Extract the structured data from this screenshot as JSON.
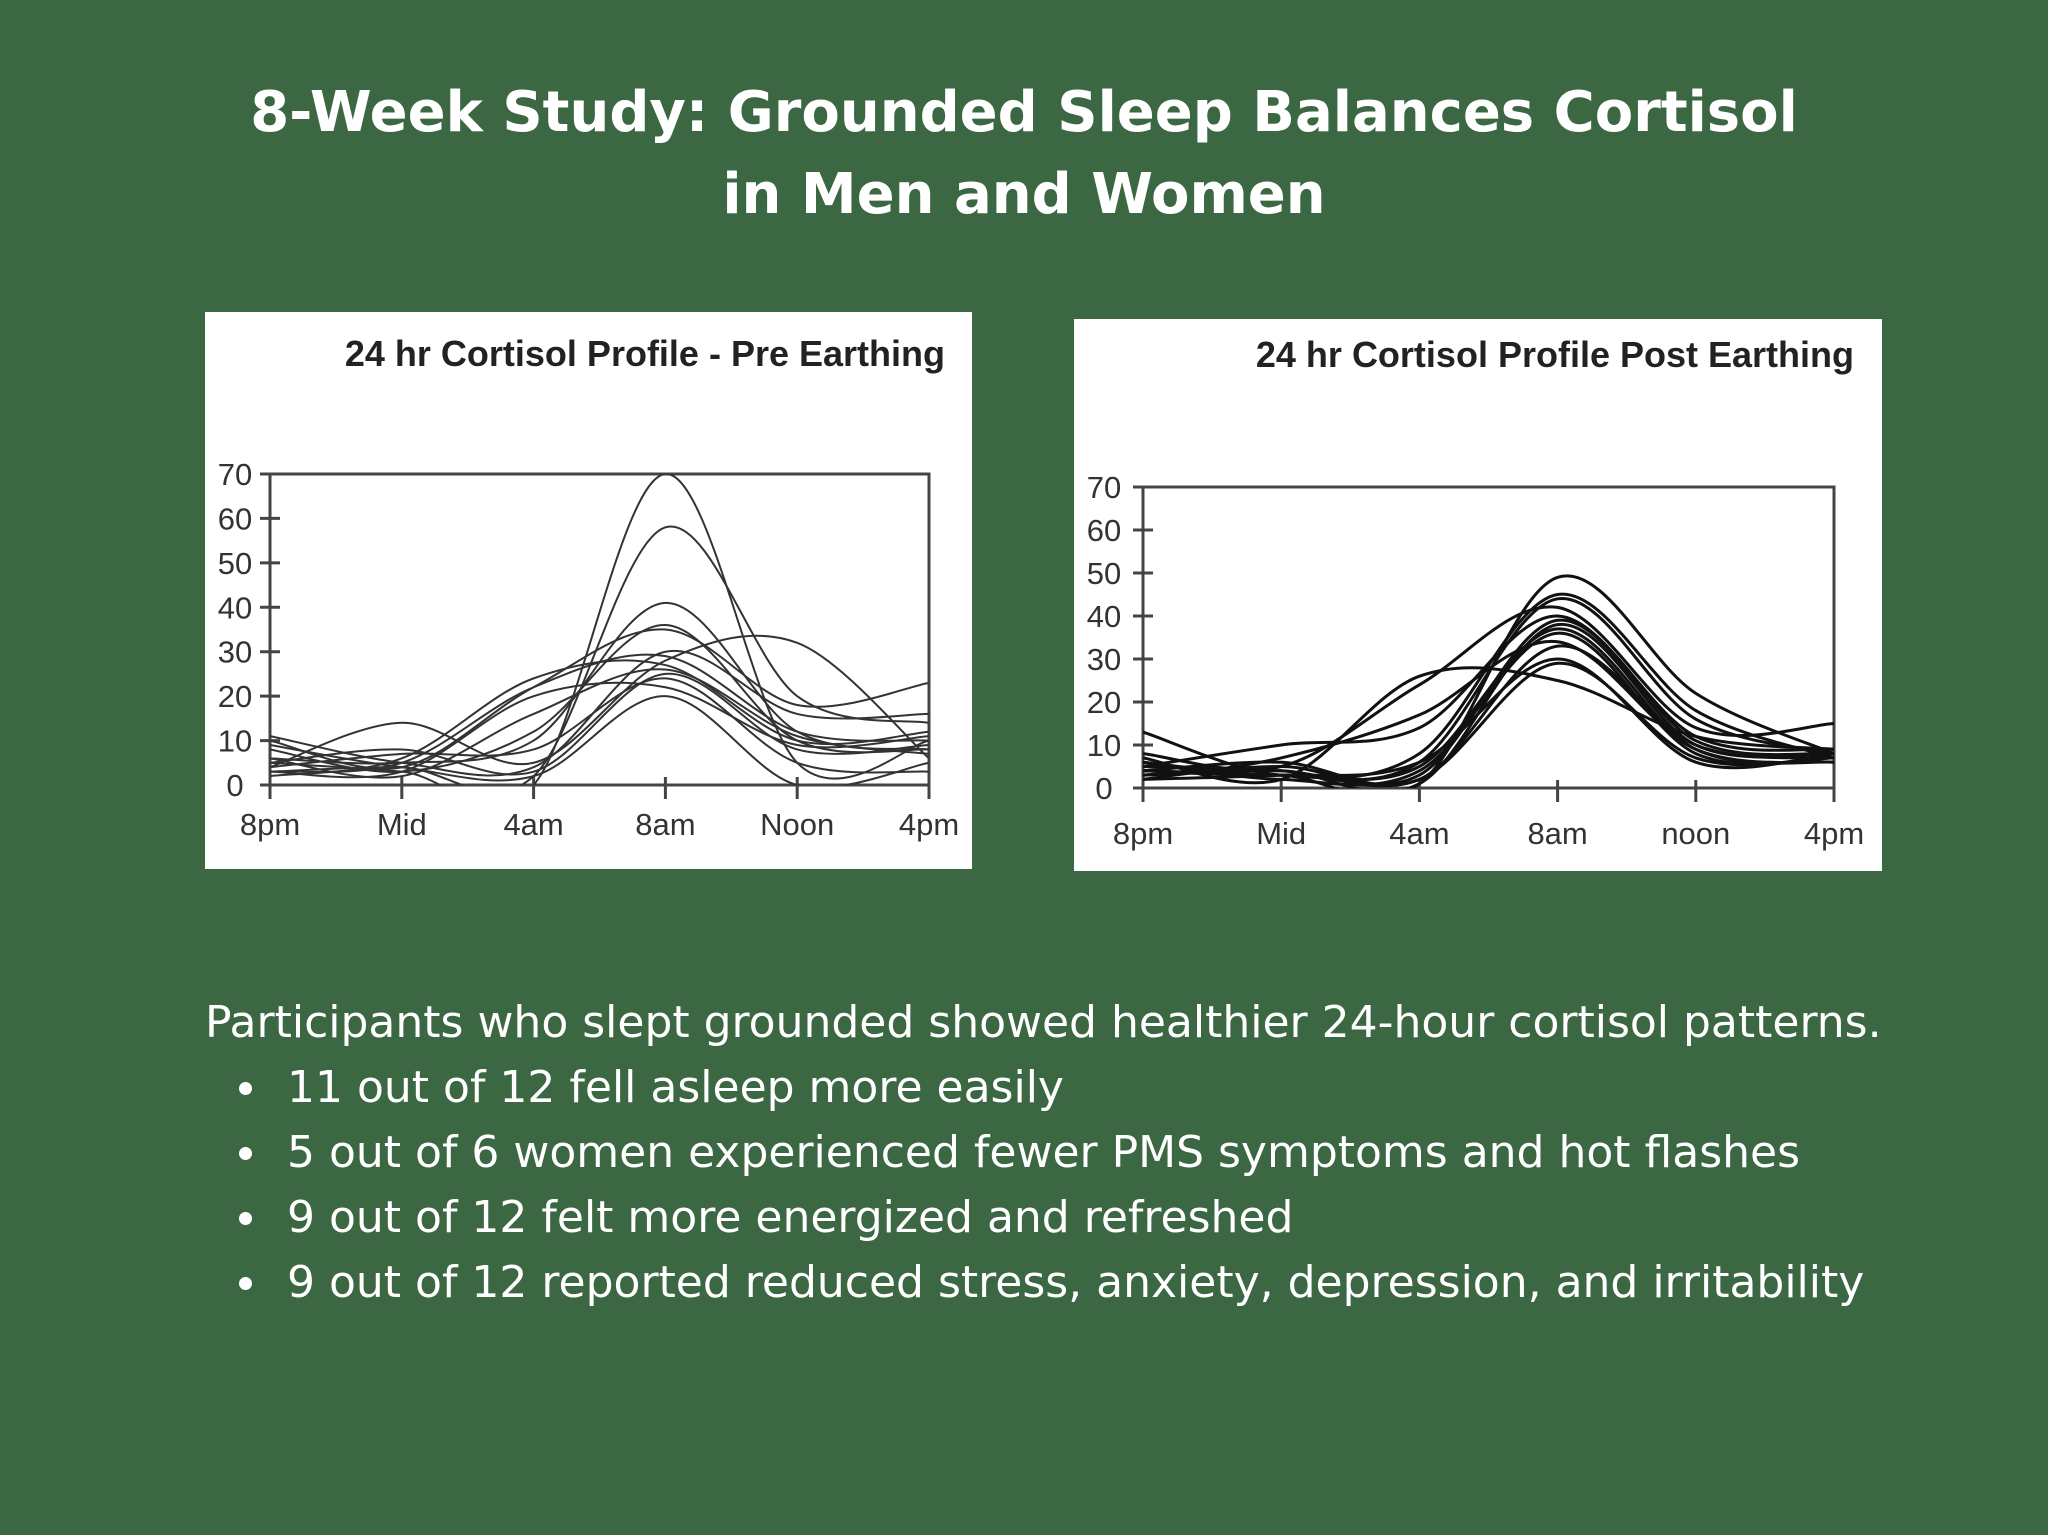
{
  "title": {
    "line1": "8-Week Study: Grounded Sleep Balances Cortisol",
    "line2": "in Men and Women"
  },
  "colors": {
    "background": "#3b6743",
    "text": "#ffffff",
    "line": "#222222"
  },
  "chart_data": [
    {
      "type": "line",
      "title": "24 hr Cortisol Profile - Pre Earthing",
      "categories": [
        "8pm",
        "Mid",
        "4am",
        "8am",
        "Noon",
        "4pm"
      ],
      "yticks": [
        "0",
        "10",
        "20",
        "30",
        "40",
        "50",
        "60",
        "70"
      ],
      "ylim": [
        0,
        70
      ],
      "series": [
        [
          5,
          3,
          0,
          70,
          5,
          10
        ],
        [
          3,
          4,
          2,
          58,
          20,
          14
        ],
        [
          6,
          5,
          10,
          41,
          12,
          8
        ],
        [
          10,
          4,
          22,
          35,
          18,
          23
        ],
        [
          4,
          14,
          5,
          28,
          32,
          6
        ],
        [
          2,
          6,
          24,
          27,
          10,
          12
        ],
        [
          8,
          3,
          12,
          36,
          10,
          8
        ],
        [
          5,
          8,
          3,
          25,
          8,
          9
        ],
        [
          3,
          3,
          20,
          22,
          9,
          11
        ],
        [
          11,
          5,
          4,
          30,
          16,
          16
        ],
        [
          6,
          2,
          16,
          26,
          11,
          7
        ],
        [
          4,
          7,
          8,
          24,
          5,
          3
        ],
        [
          9,
          4,
          2,
          20,
          0,
          5
        ],
        [
          3,
          5,
          22,
          29,
          12,
          10
        ]
      ]
    },
    {
      "type": "line",
      "title": "24 hr Cortisol Profile Post Earthing",
      "categories": [
        "8pm",
        "Mid",
        "4am",
        "8am",
        "noon",
        "4pm"
      ],
      "yticks": [
        "0",
        "10",
        "20",
        "30",
        "40",
        "50",
        "60",
        "70"
      ],
      "ylim": [
        0,
        70
      ],
      "series": [
        [
          4,
          3,
          1,
          49,
          22,
          8
        ],
        [
          13,
          3,
          8,
          45,
          18,
          7
        ],
        [
          8,
          5,
          24,
          42,
          14,
          15
        ],
        [
          5,
          10,
          14,
          40,
          12,
          9
        ],
        [
          3,
          4,
          1,
          38,
          10,
          8
        ],
        [
          6,
          2,
          4,
          36,
          8,
          7
        ],
        [
          2,
          7,
          17,
          34,
          9,
          6
        ],
        [
          4,
          3,
          6,
          30,
          6,
          8
        ],
        [
          5,
          4,
          2,
          29,
          7,
          7
        ],
        [
          7,
          2,
          26,
          25,
          12,
          9
        ],
        [
          3,
          5,
          3,
          39,
          11,
          8
        ],
        [
          2,
          3,
          5,
          37,
          9,
          6
        ],
        [
          4,
          6,
          2,
          33,
          10,
          7
        ],
        [
          6,
          3,
          6,
          44,
          16,
          8
        ]
      ]
    }
  ],
  "body": {
    "intro": "Participants who slept grounded showed healthier 24-hour cortisol patterns.",
    "bullets": [
      "11 out of 12 fell asleep more easily",
      "5 out of 6 women experienced fewer PMS symptoms and hot flashes",
      "9 out of 12 felt more energized and refreshed",
      "9 out of 12 reported reduced stress, anxiety, depression, and irritability"
    ]
  }
}
